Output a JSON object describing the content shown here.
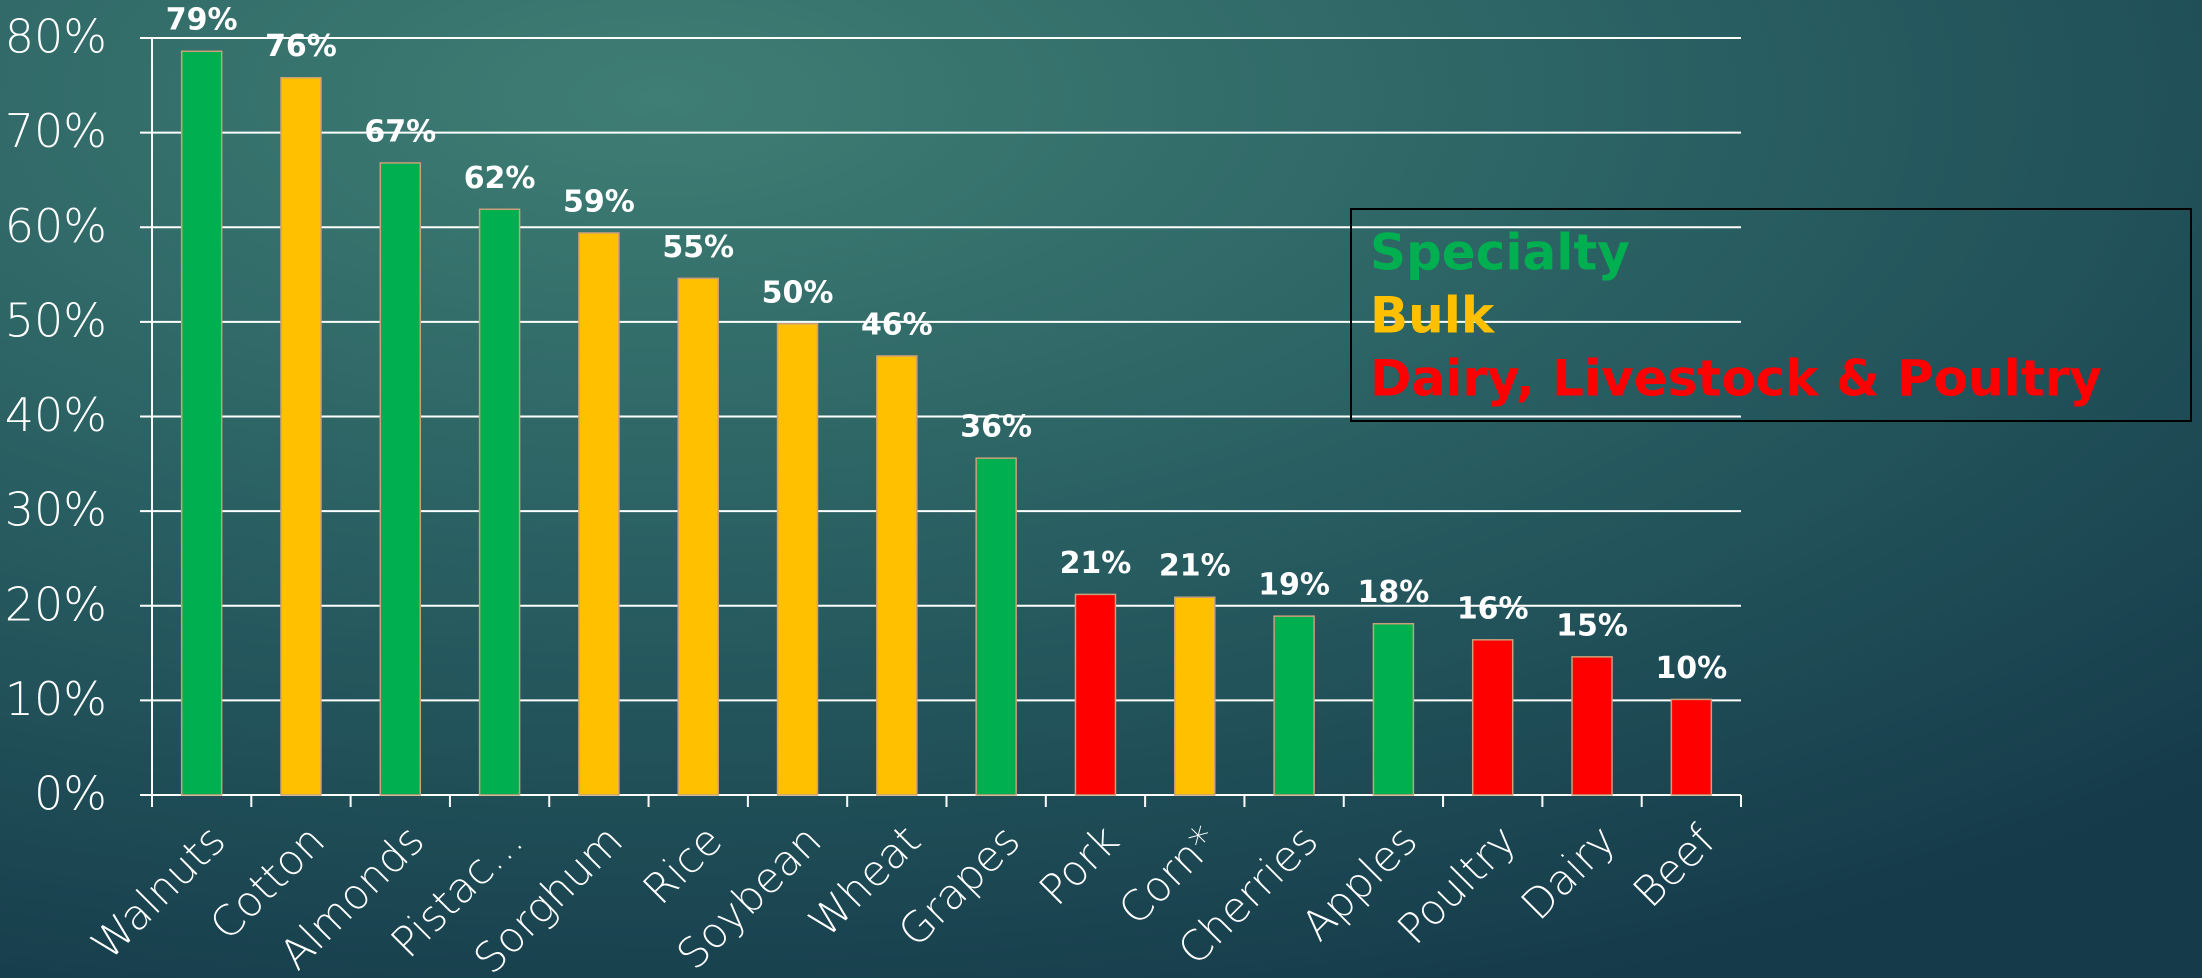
{
  "chart_data": {
    "type": "bar",
    "categories": [
      "Walnuts",
      "Cotton",
      "Almonds",
      "Pistac…",
      "Sorghum",
      "Rice",
      "Soybean",
      "Wheat",
      "Grapes",
      "Pork",
      "Corn*",
      "Cherries",
      "Apples",
      "Poultry",
      "Dairy",
      "Beef"
    ],
    "values": [
      78.6,
      75.8,
      66.8,
      61.9,
      59.4,
      54.6,
      49.8,
      46.4,
      35.6,
      21.2,
      20.9,
      18.9,
      18.1,
      16.4,
      14.6,
      10.1
    ],
    "value_labels": [
      "79%",
      "76%",
      "67%",
      "62%",
      "59%",
      "55%",
      "50%",
      "46%",
      "36%",
      "21%",
      "21%",
      "19%",
      "18%",
      "16%",
      "15%",
      "10%"
    ],
    "colors": [
      "#00b050",
      "#ffc000",
      "#00b050",
      "#00b050",
      "#ffc000",
      "#ffc000",
      "#ffc000",
      "#ffc000",
      "#00b050",
      "#ff0000",
      "#ffc000",
      "#00b050",
      "#00b050",
      "#ff0000",
      "#ff0000",
      "#ff0000"
    ],
    "legend": [
      {
        "name": "Specialty",
        "color": "#00b050"
      },
      {
        "name": "Bulk",
        "color": "#ffc000"
      },
      {
        "name": "Dairy, Livestock & Poultry",
        "color": "#ff0000"
      }
    ],
    "ylim": [
      0,
      80
    ],
    "yticks": [
      {
        "value": 0,
        "label": "0%"
      },
      {
        "value": 10,
        "label": "10%"
      },
      {
        "value": 20,
        "label": "20%"
      },
      {
        "value": 30,
        "label": "30%"
      },
      {
        "value": 40,
        "label": "40%"
      },
      {
        "value": 50,
        "label": "50%"
      },
      {
        "value": 60,
        "label": "60%"
      },
      {
        "value": 70,
        "label": "70%"
      },
      {
        "value": 80,
        "label": "80%"
      }
    ],
    "grid": true
  }
}
